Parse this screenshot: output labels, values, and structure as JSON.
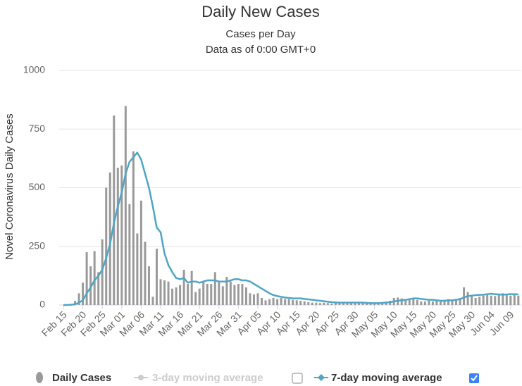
{
  "chart_data": {
    "type": "bar",
    "title": "Daily New Cases",
    "subtitle": [
      "Cases per Day",
      "Data as of 0:00 GMT+0"
    ],
    "y_label": "Novel Coronavirus Daily Cases",
    "categories": [
      "Feb 15",
      null,
      null,
      null,
      null,
      "Feb 20",
      null,
      null,
      null,
      null,
      "Feb 25",
      null,
      null,
      null,
      null,
      "Mar 01",
      null,
      null,
      null,
      null,
      "Mar 06",
      null,
      null,
      null,
      null,
      "Mar 11",
      null,
      null,
      null,
      null,
      "Mar 16",
      null,
      null,
      null,
      null,
      "Mar 21",
      null,
      null,
      null,
      null,
      "Mar 26",
      null,
      null,
      null,
      null,
      "Mar 31",
      null,
      null,
      null,
      null,
      "Apr 05",
      null,
      null,
      null,
      null,
      "Apr 10",
      null,
      null,
      null,
      null,
      "Apr 15",
      null,
      null,
      null,
      null,
      "Apr 20",
      null,
      null,
      null,
      null,
      "Apr 25",
      null,
      null,
      null,
      null,
      "Apr 30",
      null,
      null,
      null,
      null,
      "May 05",
      null,
      null,
      null,
      null,
      "May 10",
      null,
      null,
      null,
      null,
      "May 15",
      null,
      null,
      null,
      null,
      "May 20",
      null,
      null,
      null,
      null,
      "May 25",
      null,
      null,
      null,
      null,
      "May 30",
      null,
      null,
      null,
      null,
      "Jun 04",
      null,
      null,
      null,
      null,
      "Jun 09",
      null,
      null
    ],
    "series": [
      {
        "name": "Daily Cases",
        "type": "bar",
        "color": "#9a9a9a",
        "values": [
          0,
          0,
          0,
          18,
          50,
          95,
          225,
          165,
          230,
          140,
          280,
          500,
          565,
          808,
          585,
          595,
          848,
          430,
          655,
          305,
          445,
          270,
          165,
          35,
          240,
          110,
          105,
          100,
          70,
          75,
          85,
          150,
          90,
          145,
          55,
          70,
          100,
          90,
          90,
          140,
          100,
          80,
          120,
          100,
          85,
          90,
          90,
          75,
          50,
          45,
          50,
          30,
          20,
          25,
          30,
          25,
          30,
          25,
          25,
          22,
          20,
          18,
          15,
          12,
          10,
          10,
          8,
          10,
          8,
          6,
          10,
          8,
          12,
          10,
          8,
          10,
          8,
          10,
          6,
          8,
          8,
          10,
          12,
          15,
          18,
          30,
          32,
          28,
          25,
          25,
          28,
          22,
          15,
          15,
          18,
          15,
          20,
          18,
          22,
          25,
          20,
          25,
          30,
          75,
          55,
          40,
          30,
          35,
          40,
          45,
          40,
          38,
          45,
          50,
          45,
          40,
          42,
          40
        ]
      },
      {
        "name": "3-day moving average",
        "type": "line",
        "color": "#cccccc",
        "visible": false
      },
      {
        "name": "7-day moving average",
        "type": "line",
        "color": "#4ea5c6",
        "visible": true,
        "values": [
          0,
          0,
          1,
          3,
          10,
          20,
          50,
          75,
          105,
          125,
          150,
          200,
          260,
          350,
          420,
          480,
          560,
          610,
          630,
          650,
          620,
          560,
          500,
          420,
          330,
          310,
          220,
          170,
          140,
          115,
          110,
          115,
          95,
          100,
          100,
          95,
          100,
          105,
          105,
          105,
          100,
          100,
          100,
          105,
          110,
          110,
          105,
          105,
          100,
          90,
          80,
          70,
          60,
          50,
          42,
          38,
          35,
          32,
          30,
          28,
          28,
          28,
          26,
          24,
          22,
          20,
          18,
          16,
          14,
          12,
          11,
          10,
          10,
          10,
          10,
          10,
          10,
          10,
          9,
          8,
          8,
          8,
          9,
          10,
          12,
          15,
          18,
          20,
          22,
          25,
          28,
          28,
          26,
          24,
          22,
          22,
          20,
          18,
          18,
          20,
          20,
          22,
          25,
          32,
          38,
          40,
          42,
          43,
          44,
          46,
          48,
          46,
          45,
          44,
          45,
          46,
          46,
          45
        ]
      }
    ],
    "ylim": [
      0,
      1000
    ],
    "yticks": [
      0,
      250,
      500,
      750,
      1000
    ],
    "grid": true
  }
}
